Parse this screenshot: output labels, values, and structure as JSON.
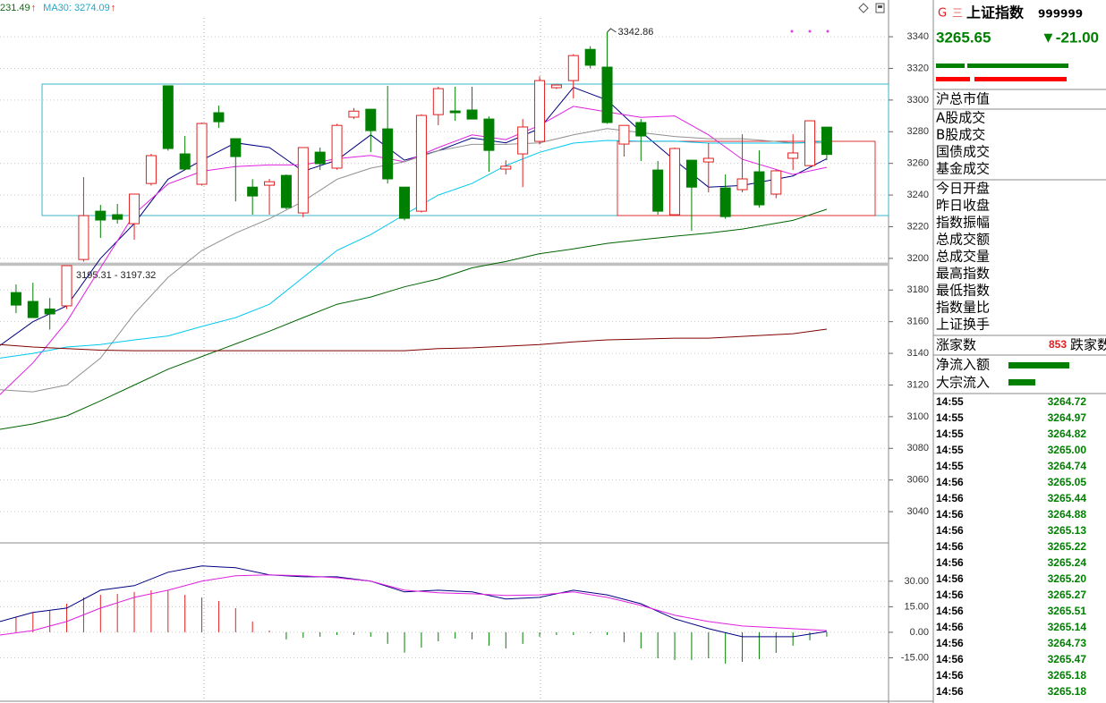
{
  "chart_data": [
    {
      "type": "candlestick",
      "legend": [
        {
          "text": "231.49",
          "arrow": "↑",
          "color": "#1a6a1a"
        },
        {
          "text": "MA30: 3274.09",
          "arrow": "↑",
          "color": "#20a8c8"
        }
      ],
      "xlim": [
        -0.95,
        51.66
      ],
      "ylim": [
        3021.4,
        3363.2
      ],
      "yticks": [
        3040,
        3060,
        3080,
        3100,
        3120,
        3140,
        3160,
        3180,
        3200,
        3220,
        3240,
        3260,
        3280,
        3300,
        3320,
        3340
      ],
      "grid": true,
      "up_color": "#e02020",
      "down_color": "#008000",
      "open": [
        3178.4,
        3172.8,
        3168,
        3170,
        3199.3,
        3229.8,
        3227.6,
        3221.9,
        3247.3,
        3309,
        3266,
        3246.8,
        3292,
        3275.6,
        3245,
        3246.2,
        3252.4,
        3228.7,
        3267.1,
        3257,
        3289.2,
        3294.2,
        3281.8,
        3245,
        3229.8,
        3290.8,
        3293.1,
        3293.7,
        3288,
        3256.4,
        3266,
        3273.9,
        3307.8,
        3312.3,
        3332,
        3320.8,
        3272.2,
        3285.8,
        3255.8,
        3227.6,
        3262,
        3260.9,
        3244.5,
        3243.4,
        3254.7,
        3240.6,
        3263.2,
        3258.6,
        3282.9
      ],
      "high": [
        3183.5,
        3184.6,
        3175,
        3195.4,
        3251.3,
        3233.8,
        3234.4,
        3240.6,
        3266,
        3309,
        3277.3,
        3285.8,
        3296.5,
        3275.6,
        3250,
        3250.2,
        3253,
        3270,
        3270,
        3285,
        3295,
        3294.2,
        3309,
        3245,
        3291,
        3308.4,
        3308.4,
        3308.4,
        3289.7,
        3262,
        3288,
        3315,
        3310,
        3329,
        3334,
        3342.86,
        3284,
        3288,
        3261.5,
        3270,
        3262,
        3272.8,
        3253,
        3278.4,
        3268.2,
        3256,
        3278.4,
        3287,
        3283
      ],
      "low": [
        3165.4,
        3162.6,
        3155,
        3168,
        3198,
        3212.9,
        3221.9,
        3211.8,
        3246,
        3268,
        3255.8,
        3246,
        3282.4,
        3236,
        3227.6,
        3227.6,
        3231,
        3226,
        3255.8,
        3256,
        3288,
        3267.1,
        3247.3,
        3224,
        3229,
        3284.1,
        3286.9,
        3288,
        3254.7,
        3253,
        3245,
        3272,
        3307,
        3301,
        3320,
        3285,
        3264.3,
        3261.5,
        3227.6,
        3227,
        3217.4,
        3241.7,
        3225,
        3241.7,
        3232,
        3238,
        3255.8,
        3258,
        3262
      ],
      "close": [
        3170.5,
        3162.6,
        3164.9,
        3195.4,
        3227,
        3224.2,
        3224.7,
        3240.6,
        3264.9,
        3269.4,
        3256.4,
        3285.2,
        3286.3,
        3264.3,
        3239.4,
        3248.4,
        3232.1,
        3270,
        3259.8,
        3284,
        3293,
        3280.7,
        3250.2,
        3225.3,
        3290.3,
        3307.2,
        3292,
        3288,
        3268.2,
        3258.2,
        3283,
        3312.3,
        3309.5,
        3328.1,
        3322,
        3285.8,
        3284,
        3277.3,
        3229.8,
        3269.4,
        3245,
        3263.2,
        3226.4,
        3250.2,
        3233.8,
        3255.3,
        3266.6,
        3286.9,
        3265.65
      ],
      "band": [
        3195.31,
        3197.32
      ],
      "band_label": "3195.31 - 3197.32",
      "series": [
        {
          "color": "#000080",
          "x": [
            -0.95,
            1,
            3,
            5,
            7,
            9,
            11,
            13,
            15,
            17,
            19,
            21,
            23,
            25,
            27,
            29,
            31,
            33,
            35,
            37,
            39,
            41,
            43,
            46,
            48
          ],
          "values": [
            3145,
            3160,
            3170,
            3200,
            3222,
            3250,
            3262,
            3273,
            3270,
            3255,
            3262,
            3278,
            3262,
            3268,
            3276,
            3273,
            3282,
            3308,
            3300,
            3280,
            3262,
            3245,
            3246,
            3252,
            3263
          ]
        },
        {
          "color": "#e020e0",
          "x": [
            -0.95,
            1,
            3,
            5,
            7,
            9,
            11,
            13,
            15,
            17,
            19,
            21,
            23,
            25,
            27,
            29,
            31,
            33,
            35,
            37,
            39,
            41,
            43,
            46,
            48
          ],
          "values": [
            3114,
            3134,
            3160,
            3194,
            3228,
            3247,
            3255,
            3258,
            3259,
            3259,
            3263,
            3265,
            3261,
            3270,
            3278,
            3275,
            3284,
            3296,
            3292.5,
            3289,
            3290,
            3278,
            3262.6,
            3253,
            3257.5
          ]
        },
        {
          "color": "#909090",
          "x": [
            -0.95,
            1,
            3,
            5,
            7,
            9,
            11,
            13,
            15,
            17,
            19,
            21,
            23,
            25,
            27,
            29,
            31,
            33,
            35,
            37,
            39,
            41,
            43,
            46,
            48
          ],
          "values": [
            3117,
            3115.7,
            3120,
            3137,
            3165,
            3188,
            3205,
            3216,
            3225,
            3236,
            3250,
            3257,
            3261,
            3268,
            3272,
            3272,
            3273,
            3278,
            3282,
            3279.5,
            3277,
            3275.6,
            3275.6,
            3273,
            3273
          ]
        },
        {
          "color": "#00c8f0",
          "x": [
            -0.95,
            1,
            3,
            5,
            7,
            9,
            11,
            13,
            15,
            17,
            19,
            21,
            23,
            25,
            27,
            29,
            31,
            33,
            35,
            37,
            39,
            41,
            43,
            46,
            48
          ],
          "values": [
            3137,
            3140,
            3144,
            3145.6,
            3148.5,
            3151,
            3157,
            3162.6,
            3171,
            3188,
            3205,
            3215,
            3227.6,
            3240,
            3247.3,
            3258.6,
            3267,
            3272.8,
            3274.5,
            3274,
            3274,
            3272.8,
            3272.8,
            3272.8,
            3274
          ]
        },
        {
          "color": "#006400",
          "x": [
            -0.95,
            1,
            3,
            5,
            7,
            9,
            11,
            13,
            15,
            17,
            19,
            21,
            23,
            25,
            27,
            29,
            31,
            33,
            35,
            37,
            39,
            41,
            43,
            46,
            48
          ],
          "values": [
            3092,
            3095.4,
            3100.5,
            3110,
            3120,
            3130,
            3138,
            3146,
            3154,
            3162.6,
            3171,
            3175.6,
            3182,
            3187,
            3194,
            3198,
            3203,
            3206,
            3209.5,
            3211.8,
            3214,
            3216,
            3218.5,
            3224,
            3231
          ]
        },
        {
          "color": "#800000",
          "x": [
            -0.95,
            1,
            3,
            5,
            7,
            9,
            11,
            13,
            15,
            17,
            19,
            21,
            23,
            25,
            27,
            29,
            31,
            33,
            35,
            37,
            39,
            41,
            43,
            46,
            48
          ],
          "values": [
            3145.6,
            3144,
            3143,
            3142,
            3141.7,
            3141.7,
            3141.7,
            3141.7,
            3141.7,
            3141.7,
            3141.7,
            3141.7,
            3141.7,
            3143,
            3143.5,
            3144.5,
            3145.6,
            3147.3,
            3148.5,
            3149,
            3149.6,
            3149.6,
            3150.7,
            3152.4,
            3155.3
          ]
        }
      ]
    },
    {
      "type": "macd",
      "xlim": [
        -0.95,
        51.66
      ],
      "ylim": [
        -40,
        52
      ],
      "yticks": [
        {
          "value": -15,
          "label": "-15.00"
        },
        {
          "value": 0,
          "label": "0.00"
        },
        {
          "value": 15,
          "label": "15.00"
        },
        {
          "value": 30,
          "label": "30.00"
        }
      ],
      "up_color": "#e02020",
      "down_color": "#008000",
      "histogram": [
        9,
        11.6,
        12.6,
        16.8,
        20.5,
        22,
        22.6,
        23.7,
        24.7,
        24.7,
        22,
        20.5,
        18.4,
        14.2,
        6.3,
        1,
        -4.2,
        -3.2,
        -2.6,
        -1.6,
        -1.6,
        -2.6,
        -6.8,
        -12,
        -9,
        -5.3,
        -3.7,
        -4.2,
        -7.9,
        -9.5,
        -6.8,
        -2.6,
        -1.6,
        -1.6,
        -0.5,
        -1.6,
        -5.8,
        -9.5,
        -15.3,
        -16.3,
        -16.3,
        -15.3,
        -18.4,
        -17.4,
        -15.8,
        -12.1,
        -7.9,
        -4.7,
        -2.6
      ],
      "series": [
        {
          "color": "#000080",
          "x": [
            -0.95,
            1,
            3,
            5,
            7,
            9,
            11,
            13,
            15,
            17,
            19,
            21,
            23,
            25,
            27,
            29,
            31,
            33,
            35,
            37,
            39,
            41,
            43,
            46,
            48
          ],
          "values": [
            6.3,
            11.6,
            14.2,
            24.7,
            27.4,
            35.3,
            39,
            37.9,
            33.7,
            32.6,
            32.6,
            30,
            23.7,
            24.7,
            23.7,
            19.5,
            20.5,
            24.7,
            22,
            16.8,
            7.9,
            2.1,
            -2.6,
            -2.6,
            0.5
          ]
        },
        {
          "color": "#e020e0",
          "x": [
            -0.95,
            1,
            3,
            5,
            7,
            9,
            11,
            13,
            15,
            17,
            19,
            21,
            23,
            25,
            27,
            29,
            31,
            33,
            35,
            37,
            39,
            41,
            43,
            46,
            48
          ],
          "values": [
            -1.6,
            1,
            6.3,
            14.2,
            20.5,
            24.7,
            30,
            33.2,
            33.7,
            33.2,
            32,
            30,
            24.7,
            23.2,
            22.6,
            21.6,
            22,
            23.7,
            20.5,
            15.8,
            10,
            6.3,
            3.7,
            2.1,
            1
          ]
        }
      ]
    }
  ],
  "panel": {
    "header": {
      "icon_g": "G",
      "icon_menu": "三",
      "name": "上证指数",
      "code": "999999"
    },
    "price": "3265.65",
    "change": "▼-21.00",
    "market_value": "沪总市值",
    "volume_fields": [
      "A股成交",
      "B股成交",
      "国债成交",
      "基金成交"
    ],
    "index_fields": [
      "今日开盘",
      "昨日收盘",
      "指数振幅",
      "总成交额",
      "总成交量",
      "最高指数",
      "最低指数",
      "指数量比",
      "上证换手"
    ],
    "breadth": {
      "up_label": "涨家数",
      "up_count": "853",
      "down_label": "跌家数"
    },
    "flows": [
      "净流入额",
      "大宗流入"
    ],
    "ticks": [
      {
        "time": "14:55",
        "price": "3264.72"
      },
      {
        "time": "14:55",
        "price": "3264.97"
      },
      {
        "time": "14:55",
        "price": "3264.82"
      },
      {
        "time": "14:55",
        "price": "3265.00"
      },
      {
        "time": "14:55",
        "price": "3264.74"
      },
      {
        "time": "14:56",
        "price": "3265.05"
      },
      {
        "time": "14:56",
        "price": "3265.44"
      },
      {
        "time": "14:56",
        "price": "3264.88"
      },
      {
        "time": "14:56",
        "price": "3265.13"
      },
      {
        "time": "14:56",
        "price": "3265.22"
      },
      {
        "time": "14:56",
        "price": "3265.24"
      },
      {
        "time": "14:56",
        "price": "3265.20"
      },
      {
        "time": "14:56",
        "price": "3265.27"
      },
      {
        "time": "14:56",
        "price": "3265.51"
      },
      {
        "time": "14:56",
        "price": "3265.14"
      },
      {
        "time": "14:56",
        "price": "3264.73"
      },
      {
        "time": "14:56",
        "price": "3265.47"
      },
      {
        "time": "14:56",
        "price": "3265.18"
      },
      {
        "time": "14:56",
        "price": "3265.18"
      }
    ]
  }
}
